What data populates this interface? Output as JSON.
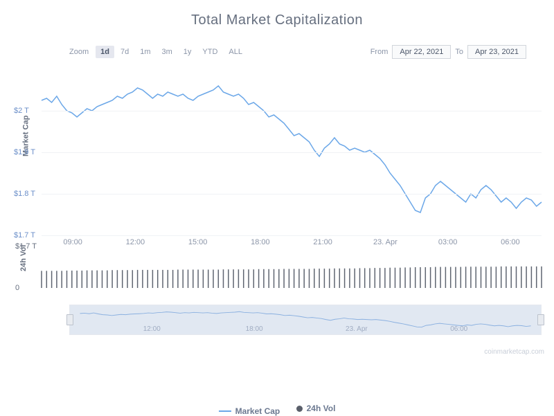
{
  "title": "Total Market Capitalization",
  "zoom": {
    "label": "Zoom",
    "options": [
      "1d",
      "7d",
      "1m",
      "3m",
      "1y",
      "YTD",
      "ALL"
    ],
    "active": "1d"
  },
  "dateRange": {
    "fromLabel": "From",
    "from": "Apr 22, 2021",
    "toLabel": "To",
    "to": "Apr 23, 2021"
  },
  "marketCap": {
    "type": "line",
    "y_label": "Market Cap",
    "line_color": "#6ba7e8",
    "line_width": 1.5,
    "ylim": [
      1.7,
      2.1
    ],
    "yticks": [
      {
        "v": 2.0,
        "l": "$2 T"
      },
      {
        "v": 1.9,
        "l": "$1.9 T"
      },
      {
        "v": 1.8,
        "l": "$1.8 T"
      },
      {
        "v": 1.7,
        "l": "$1.7 T"
      }
    ],
    "xticks": [
      "09:00",
      "12:00",
      "15:00",
      "18:00",
      "21:00",
      "23. Apr",
      "03:00",
      "06:00"
    ],
    "data": [
      2.025,
      2.03,
      2.02,
      2.035,
      2.015,
      2.0,
      1.995,
      1.985,
      1.995,
      2.005,
      2.0,
      2.01,
      2.015,
      2.02,
      2.025,
      2.035,
      2.03,
      2.04,
      2.045,
      2.055,
      2.05,
      2.04,
      2.03,
      2.04,
      2.035,
      2.045,
      2.04,
      2.035,
      2.04,
      2.03,
      2.025,
      2.035,
      2.04,
      2.045,
      2.05,
      2.06,
      2.045,
      2.04,
      2.035,
      2.04,
      2.03,
      2.015,
      2.02,
      2.01,
      2.0,
      1.985,
      1.99,
      1.98,
      1.97,
      1.955,
      1.94,
      1.945,
      1.935,
      1.925,
      1.905,
      1.89,
      1.91,
      1.92,
      1.935,
      1.92,
      1.915,
      1.905,
      1.91,
      1.905,
      1.9,
      1.905,
      1.895,
      1.885,
      1.87,
      1.85,
      1.835,
      1.82,
      1.8,
      1.78,
      1.76,
      1.755,
      1.79,
      1.8,
      1.82,
      1.83,
      1.82,
      1.81,
      1.8,
      1.79,
      1.78,
      1.8,
      1.79,
      1.81,
      1.82,
      1.81,
      1.795,
      1.78,
      1.79,
      1.78,
      1.765,
      1.78,
      1.79,
      1.785,
      1.77,
      1.78
    ]
  },
  "volume": {
    "type": "bar",
    "y_label": "24h Vol",
    "bar_color": "#5e6470",
    "ylim": [
      0,
      1.7
    ],
    "yticks": [
      {
        "v": 1.7,
        "l": "$1.7 T"
      },
      {
        "v": 0,
        "l": "0"
      }
    ],
    "data": [
      0.7,
      0.7,
      0.7,
      0.7,
      0.7,
      0.71,
      0.71,
      0.71,
      0.71,
      0.72,
      0.72,
      0.72,
      0.72,
      0.72,
      0.73,
      0.73,
      0.73,
      0.73,
      0.73,
      0.74,
      0.74,
      0.74,
      0.74,
      0.74,
      0.74,
      0.74,
      0.74,
      0.75,
      0.75,
      0.75,
      0.75,
      0.75,
      0.75,
      0.75,
      0.75,
      0.75,
      0.76,
      0.76,
      0.76,
      0.76,
      0.76,
      0.76,
      0.76,
      0.77,
      0.77,
      0.77,
      0.77,
      0.77,
      0.78,
      0.78,
      0.78,
      0.78,
      0.78,
      0.78,
      0.79,
      0.79,
      0.79,
      0.79,
      0.8,
      0.8,
      0.8,
      0.8,
      0.8,
      0.81,
      0.81,
      0.81,
      0.82,
      0.82,
      0.82,
      0.83,
      0.83,
      0.83,
      0.84,
      0.84,
      0.85,
      0.85,
      0.85,
      0.85,
      0.86,
      0.86,
      0.86,
      0.86,
      0.86,
      0.86,
      0.87,
      0.87,
      0.87,
      0.87,
      0.87,
      0.87,
      0.87,
      0.88,
      0.88,
      0.88,
      0.88,
      0.88,
      0.88,
      0.88,
      0.88,
      0.88
    ]
  },
  "navigator": {
    "xticks": [
      "12:00",
      "18:00",
      "23. Apr",
      "06:00"
    ],
    "line_color": "#8ab0e0"
  },
  "legend": {
    "mcap": "Market Cap",
    "vol": "24h Vol"
  },
  "watermark": "coinmarketcap.com"
}
